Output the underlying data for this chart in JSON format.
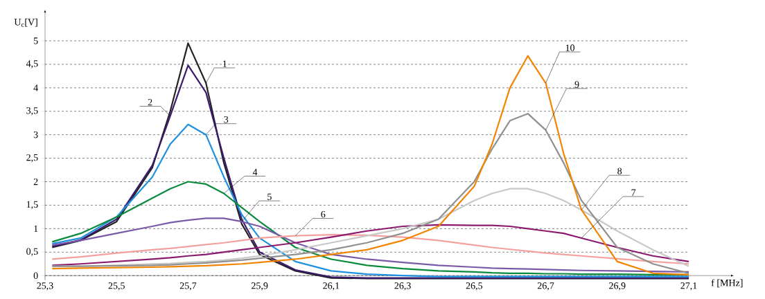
{
  "chart_data": {
    "type": "line",
    "xlabel": "f [MHz]",
    "ylabel": "U$_{c}$[V]",
    "x": [
      25.32,
      25.4,
      25.5,
      25.6,
      25.65,
      25.7,
      25.75,
      25.8,
      25.85,
      25.9,
      26.0,
      26.1,
      26.2,
      26.3,
      26.4,
      26.5,
      26.55,
      26.6,
      26.65,
      26.7,
      26.75,
      26.8,
      26.9,
      27.0,
      27.1
    ],
    "series": [
      {
        "name": "1",
        "color": "#222222",
        "values": [
          0.6,
          0.75,
          1.15,
          2.3,
          3.5,
          4.95,
          4.1,
          2.4,
          1.1,
          0.45,
          0.1,
          -0.05,
          -0.06,
          -0.06,
          -0.06,
          -0.06,
          -0.06,
          -0.06,
          -0.06,
          -0.06,
          -0.06,
          -0.06,
          -0.06,
          -0.06,
          -0.06
        ]
      },
      {
        "name": "2",
        "color": "#3b1a6e",
        "values": [
          0.62,
          0.76,
          1.2,
          2.35,
          3.4,
          4.48,
          3.9,
          2.5,
          1.2,
          0.5,
          0.12,
          -0.03,
          -0.05,
          -0.05,
          -0.05,
          -0.05,
          -0.05,
          -0.05,
          -0.05,
          -0.05,
          -0.05,
          -0.05,
          -0.05,
          -0.05,
          -0.05
        ]
      },
      {
        "name": "3",
        "color": "#1e90e0",
        "values": [
          0.68,
          0.8,
          1.25,
          2.1,
          2.8,
          3.22,
          3.0,
          2.1,
          1.3,
          0.8,
          0.3,
          0.1,
          0.03,
          0.0,
          -0.02,
          -0.02,
          -0.02,
          -0.02,
          -0.02,
          -0.02,
          -0.02,
          -0.02,
          -0.02,
          -0.02,
          -0.02
        ]
      },
      {
        "name": "4",
        "color": "#0a8a3c",
        "values": [
          0.72,
          0.9,
          1.25,
          1.65,
          1.85,
          2.0,
          1.95,
          1.75,
          1.45,
          1.15,
          0.6,
          0.35,
          0.22,
          0.15,
          0.1,
          0.08,
          0.06,
          0.05,
          0.05,
          0.04,
          0.04,
          0.03,
          0.03,
          0.02,
          0.02
        ]
      },
      {
        "name": "5",
        "color": "#7a5aa8",
        "values": [
          0.65,
          0.75,
          0.9,
          1.05,
          1.13,
          1.18,
          1.22,
          1.22,
          1.15,
          1.05,
          0.7,
          0.45,
          0.35,
          0.28,
          0.22,
          0.18,
          0.16,
          0.15,
          0.14,
          0.13,
          0.12,
          0.11,
          0.1,
          0.09,
          0.08
        ]
      },
      {
        "name": "6",
        "color": "#f4a09c",
        "values": [
          0.35,
          0.4,
          0.48,
          0.55,
          0.58,
          0.62,
          0.66,
          0.7,
          0.75,
          0.8,
          0.85,
          0.87,
          0.86,
          0.82,
          0.75,
          0.65,
          0.6,
          0.56,
          0.52,
          0.48,
          0.45,
          0.42,
          0.36,
          0.3,
          0.25
        ]
      },
      {
        "name": "7",
        "color": "#8b1a6e",
        "values": [
          0.22,
          0.25,
          0.3,
          0.35,
          0.38,
          0.42,
          0.45,
          0.5,
          0.55,
          0.6,
          0.7,
          0.82,
          0.95,
          1.05,
          1.08,
          1.07,
          1.07,
          1.05,
          1.0,
          0.95,
          0.9,
          0.8,
          0.6,
          0.42,
          0.3
        ]
      },
      {
        "name": "8",
        "color": "#c8c8c8",
        "values": [
          0.2,
          0.2,
          0.22,
          0.25,
          0.26,
          0.28,
          0.3,
          0.33,
          0.37,
          0.42,
          0.55,
          0.7,
          0.85,
          1.0,
          1.2,
          1.6,
          1.75,
          1.85,
          1.85,
          1.75,
          1.6,
          1.4,
          0.95,
          0.55,
          0.2
        ]
      },
      {
        "name": "9",
        "color": "#909090",
        "values": [
          0.2,
          0.2,
          0.21,
          0.22,
          0.23,
          0.25,
          0.27,
          0.3,
          0.33,
          0.37,
          0.45,
          0.55,
          0.7,
          0.9,
          1.2,
          2.0,
          2.7,
          3.3,
          3.45,
          3.1,
          2.4,
          1.6,
          0.6,
          0.25,
          0.05
        ]
      },
      {
        "name": "10",
        "color": "#f38400",
        "values": [
          0.15,
          0.16,
          0.17,
          0.18,
          0.19,
          0.2,
          0.21,
          0.23,
          0.25,
          0.28,
          0.35,
          0.45,
          0.55,
          0.75,
          1.05,
          1.9,
          2.8,
          4.0,
          4.68,
          4.1,
          2.6,
          1.4,
          0.3,
          0.05,
          0.02
        ]
      }
    ],
    "xlim": [
      25.3,
      27.1
    ],
    "ylim": [
      -0.1,
      5
    ],
    "xticks": [
      {
        "value": 25.3,
        "label": "25,3"
      },
      {
        "value": 25.5,
        "label": "25,5"
      },
      {
        "value": 25.7,
        "label": "25,7"
      },
      {
        "value": 25.9,
        "label": "25,9"
      },
      {
        "value": 26.1,
        "label": "26,1"
      },
      {
        "value": 26.3,
        "label": "26,3"
      },
      {
        "value": 26.5,
        "label": "26,5"
      },
      {
        "value": 26.7,
        "label": "26,7"
      },
      {
        "value": 26.9,
        "label": "26,9"
      },
      {
        "value": 27.1,
        "label": "27,1"
      }
    ],
    "yticks": [
      0,
      {
        "value": 0.5,
        "label": "0,5"
      },
      1,
      {
        "value": 1.5,
        "label": "1,5"
      },
      2,
      {
        "value": 2.5,
        "label": "2,5"
      },
      3,
      {
        "value": 3.5,
        "label": "3,5"
      },
      4,
      {
        "value": 4.5,
        "label": "4,5"
      },
      5
    ],
    "grid": "y"
  }
}
